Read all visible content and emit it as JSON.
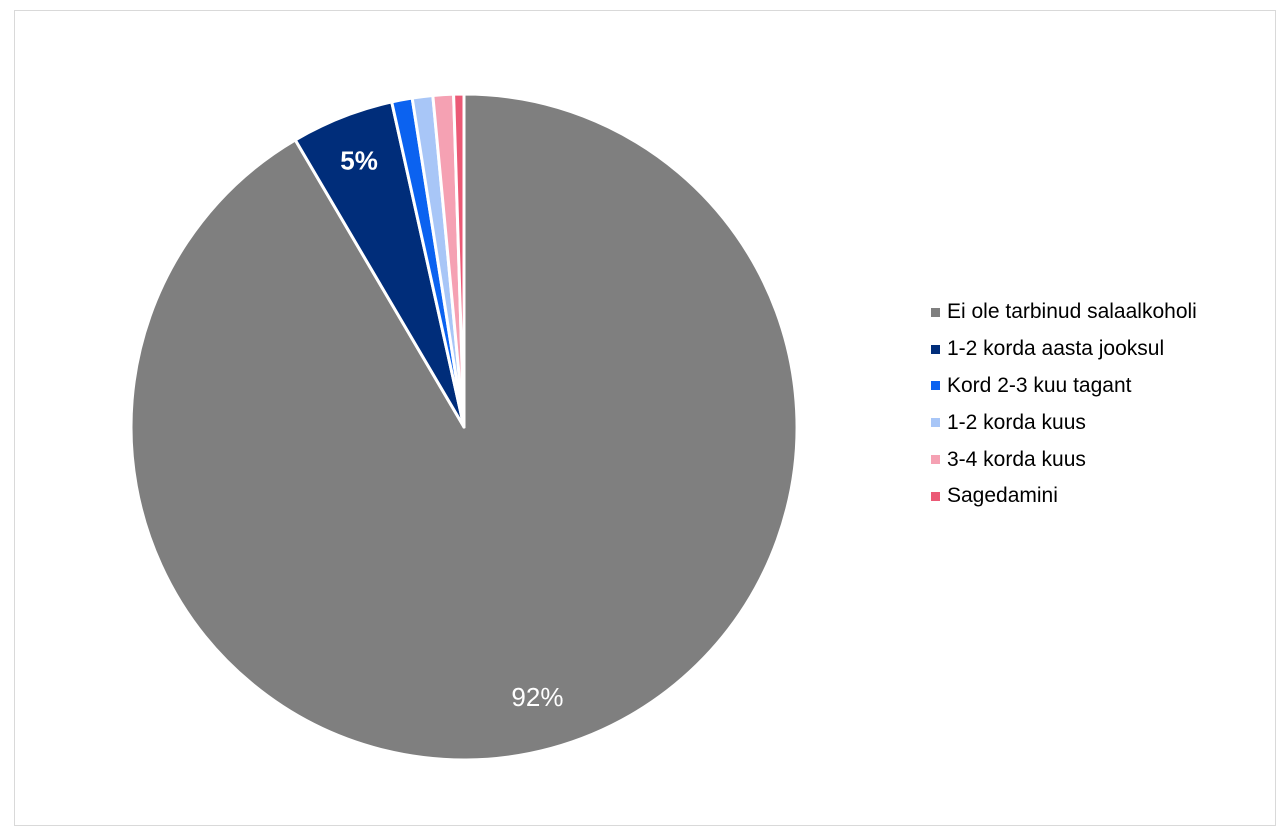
{
  "chart_data": {
    "type": "pie",
    "title": "",
    "legend_position": "right",
    "start_angle_deg": 0,
    "direction": "clockwise",
    "slices": [
      {
        "label": "Ei ole tarbinud salaalkoholi",
        "value": 92,
        "color": "#7f7f7f",
        "data_label": "92%",
        "label_color": "#ffffff",
        "label_bold": false
      },
      {
        "label": "1-2 korda aasta jooksul",
        "value": 5,
        "color": "#002d7a",
        "data_label": "5%",
        "label_color": "#ffffff",
        "label_bold": true
      },
      {
        "label": "Kord 2-3 kuu tagant",
        "value": 1,
        "color": "#0b62f0",
        "data_label": "",
        "label_color": "#ffffff",
        "label_bold": false
      },
      {
        "label": "1-2 korda kuus",
        "value": 1,
        "color": "#a8c6f7",
        "data_label": "",
        "label_color": "#ffffff",
        "label_bold": false
      },
      {
        "label": "3-4 korda kuus",
        "value": 1,
        "color": "#f5a1b3",
        "data_label": "",
        "label_color": "#ffffff",
        "label_bold": false
      },
      {
        "label": "Sagedamini",
        "value": 0.5,
        "color": "#eb5a76",
        "data_label": "",
        "label_color": "#ffffff",
        "label_bold": false
      }
    ]
  }
}
